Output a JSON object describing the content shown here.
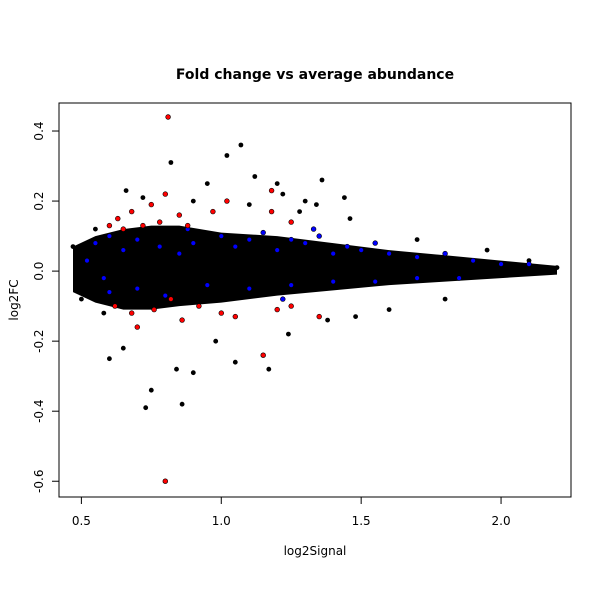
{
  "chart_data": {
    "type": "scatter",
    "title": "Fold change vs average abundance",
    "xlabel": "log2Signal",
    "ylabel": "log2FC",
    "xlim": [
      0.42,
      2.25
    ],
    "ylim": [
      -0.645,
      0.48
    ],
    "x_ticks": [
      0.5,
      1.0,
      1.5,
      2.0
    ],
    "x_tick_labels": [
      "0.5",
      "1.0",
      "1.5",
      "2.0"
    ],
    "y_ticks": [
      -0.6,
      -0.4,
      -0.2,
      0.0,
      0.2,
      0.4
    ],
    "y_tick_labels": [
      "-0.6",
      "-0.4",
      "-0.2",
      "0.0",
      "0.2",
      "0.4"
    ],
    "grid": false,
    "legend": "none",
    "colors": {
      "background": "#000000",
      "highlight_blue": "#0000ff",
      "highlight_red": "#ff0000"
    },
    "series": [
      {
        "color": "#000000",
        "points": [
          [
            0.82,
            0.31
          ],
          [
            1.02,
            0.33
          ],
          [
            1.07,
            0.36
          ],
          [
            1.12,
            0.27
          ],
          [
            1.36,
            0.26
          ],
          [
            1.44,
            0.21
          ],
          [
            0.95,
            0.25
          ],
          [
            1.2,
            0.25
          ],
          [
            1.22,
            0.22
          ],
          [
            0.66,
            0.23
          ],
          [
            0.72,
            0.21
          ],
          [
            1.3,
            0.2
          ],
          [
            1.34,
            0.19
          ],
          [
            0.9,
            0.2
          ],
          [
            1.1,
            0.19
          ],
          [
            0.75,
            -0.34
          ],
          [
            0.73,
            -0.39
          ],
          [
            0.86,
            -0.38
          ],
          [
            0.9,
            -0.29
          ],
          [
            0.84,
            -0.28
          ],
          [
            0.6,
            -0.25
          ],
          [
            0.65,
            -0.22
          ],
          [
            1.05,
            -0.26
          ],
          [
            1.17,
            -0.28
          ],
          [
            1.24,
            -0.18
          ],
          [
            0.98,
            -0.2
          ],
          [
            1.38,
            -0.14
          ],
          [
            1.48,
            -0.13
          ],
          [
            1.6,
            -0.11
          ],
          [
            1.8,
            -0.08
          ],
          [
            2.1,
            0.03
          ],
          [
            2.2,
            0.01
          ],
          [
            1.95,
            0.06
          ],
          [
            1.7,
            0.09
          ],
          [
            0.47,
            0.07
          ],
          [
            0.5,
            -0.08
          ],
          [
            0.55,
            0.12
          ],
          [
            0.58,
            -0.12
          ],
          [
            1.28,
            0.17
          ],
          [
            1.46,
            0.15
          ]
        ]
      },
      {
        "color": "#0000ff",
        "points": [
          [
            0.55,
            0.08
          ],
          [
            0.6,
            0.1
          ],
          [
            0.65,
            0.06
          ],
          [
            0.7,
            0.09
          ],
          [
            0.78,
            0.07
          ],
          [
            0.85,
            0.05
          ],
          [
            0.9,
            0.08
          ],
          [
            1.0,
            0.1
          ],
          [
            1.05,
            0.07
          ],
          [
            1.1,
            0.09
          ],
          [
            1.15,
            0.11
          ],
          [
            1.2,
            0.06
          ],
          [
            1.25,
            0.09
          ],
          [
            1.3,
            0.08
          ],
          [
            1.35,
            0.1
          ],
          [
            1.4,
            0.05
          ],
          [
            1.45,
            0.07
          ],
          [
            1.5,
            0.06
          ],
          [
            1.55,
            0.08
          ],
          [
            1.6,
            0.05
          ],
          [
            1.7,
            0.04
          ],
          [
            1.8,
            0.05
          ],
          [
            1.9,
            0.03
          ],
          [
            2.0,
            0.02
          ],
          [
            2.1,
            0.02
          ],
          [
            0.6,
            -0.06
          ],
          [
            0.7,
            -0.05
          ],
          [
            0.8,
            -0.07
          ],
          [
            0.95,
            -0.04
          ],
          [
            1.1,
            -0.05
          ],
          [
            1.25,
            -0.04
          ],
          [
            1.4,
            -0.03
          ],
          [
            1.55,
            -0.03
          ],
          [
            1.7,
            -0.02
          ],
          [
            1.85,
            -0.02
          ],
          [
            0.52,
            0.03
          ],
          [
            0.58,
            -0.02
          ],
          [
            1.33,
            0.12
          ],
          [
            1.22,
            -0.08
          ],
          [
            0.88,
            0.12
          ]
        ]
      },
      {
        "color": "#ff0000",
        "points": [
          [
            0.81,
            0.44
          ],
          [
            0.8,
            -0.6
          ],
          [
            0.8,
            0.22
          ],
          [
            1.15,
            -0.24
          ],
          [
            1.02,
            0.2
          ],
          [
            1.18,
            0.23
          ],
          [
            1.18,
            0.17
          ],
          [
            0.6,
            0.13
          ],
          [
            0.63,
            0.15
          ],
          [
            0.65,
            0.12
          ],
          [
            0.68,
            0.17
          ],
          [
            0.72,
            0.13
          ],
          [
            0.75,
            0.19
          ],
          [
            0.78,
            0.14
          ],
          [
            0.85,
            0.16
          ],
          [
            0.88,
            0.13
          ],
          [
            0.62,
            -0.1
          ],
          [
            0.68,
            -0.12
          ],
          [
            0.7,
            -0.16
          ],
          [
            0.76,
            -0.11
          ],
          [
            0.82,
            -0.08
          ],
          [
            0.86,
            -0.14
          ],
          [
            0.92,
            -0.1
          ],
          [
            1.0,
            -0.12
          ],
          [
            1.05,
            -0.13
          ],
          [
            1.2,
            -0.11
          ],
          [
            1.25,
            -0.1
          ],
          [
            1.35,
            -0.13
          ],
          [
            1.25,
            0.14
          ],
          [
            0.97,
            0.17
          ]
        ]
      }
    ]
  }
}
